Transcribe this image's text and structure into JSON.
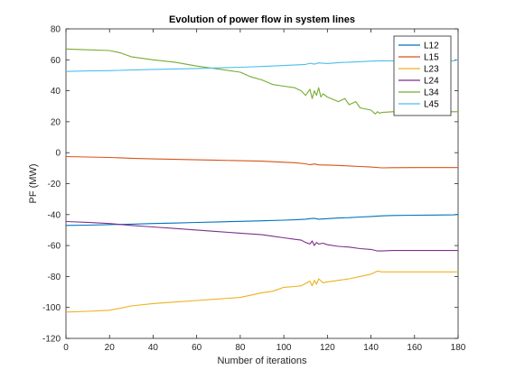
{
  "chart_data": {
    "type": "line",
    "title": "Evolution of power flow in system lines",
    "xlabel": "Number of iterations",
    "ylabel": "PF (MW)",
    "xlim": [
      0,
      180
    ],
    "ylim": [
      -120,
      80
    ],
    "xticks": [
      0,
      20,
      40,
      60,
      80,
      100,
      120,
      140,
      160,
      180
    ],
    "yticks": [
      -120,
      -100,
      -80,
      -60,
      -40,
      -20,
      0,
      20,
      40,
      60,
      80
    ],
    "grid": false,
    "legend_position": "top-right",
    "series": [
      {
        "name": "L12",
        "color": "#0072BD",
        "x": [
          0,
          10,
          20,
          30,
          40,
          50,
          60,
          70,
          80,
          90,
          100,
          105,
          110,
          112,
          114,
          116,
          120,
          125,
          130,
          135,
          140,
          145,
          150,
          160,
          170,
          178,
          180
        ],
        "y": [
          -47,
          -46.8,
          -46.5,
          -46.2,
          -45.8,
          -45.5,
          -45.1,
          -44.7,
          -44.4,
          -44,
          -43.6,
          -43.4,
          -43,
          -42.6,
          -42.4,
          -43,
          -42.6,
          -42.2,
          -42,
          -41.6,
          -41.2,
          -40.8,
          -40.6,
          -40.4,
          -40.3,
          -40.2,
          -39.8
        ]
      },
      {
        "name": "L15",
        "color": "#D95319",
        "x": [
          0,
          10,
          20,
          30,
          40,
          50,
          60,
          70,
          80,
          90,
          100,
          105,
          110,
          112,
          114,
          116,
          120,
          125,
          130,
          135,
          140,
          145,
          150,
          160,
          170,
          180
        ],
        "y": [
          -2.5,
          -2.8,
          -3.1,
          -3.6,
          -4.0,
          -4.3,
          -4.6,
          -4.9,
          -5.2,
          -5.5,
          -6.2,
          -6.5,
          -7.2,
          -7.8,
          -7.3,
          -7.9,
          -8.0,
          -8.2,
          -8.6,
          -8.9,
          -9.3,
          -9.8,
          -9.7,
          -9.6,
          -9.6,
          -9.6
        ]
      },
      {
        "name": "L23",
        "color": "#EDB120",
        "x": [
          0,
          10,
          20,
          25,
          30,
          40,
          50,
          60,
          70,
          80,
          90,
          95,
          100,
          105,
          108,
          110,
          112,
          113,
          114,
          115,
          116,
          118,
          120,
          125,
          130,
          135,
          140,
          143,
          145,
          150,
          160,
          170,
          180
        ],
        "y": [
          -103,
          -102.5,
          -101.8,
          -100.5,
          -99,
          -97.5,
          -96.5,
          -95.5,
          -94.5,
          -93.5,
          -90.5,
          -89.5,
          -87,
          -86.5,
          -86,
          -84.5,
          -83,
          -86,
          -82.5,
          -85,
          -81.5,
          -84,
          -83.5,
          -82.5,
          -81.5,
          -80,
          -78.5,
          -76.5,
          -77,
          -77,
          -77,
          -77,
          -77
        ]
      },
      {
        "name": "L24",
        "color": "#7E2F8E",
        "x": [
          0,
          10,
          20,
          30,
          40,
          50,
          60,
          70,
          80,
          90,
          95,
          100,
          105,
          108,
          110,
          112,
          113,
          114,
          115,
          116,
          118,
          120,
          125,
          130,
          135,
          140,
          143,
          145,
          150,
          160,
          170,
          180
        ],
        "y": [
          -44.5,
          -45,
          -45.8,
          -47,
          -48,
          -49,
          -50,
          -51,
          -52,
          -53,
          -54,
          -55,
          -56,
          -56.5,
          -58,
          -59,
          -57,
          -60,
          -58,
          -59,
          -58.5,
          -59.5,
          -60.5,
          -61,
          -62,
          -62.5,
          -63.5,
          -63.5,
          -63.2,
          -63.2,
          -63.2,
          -63.2
        ]
      },
      {
        "name": "L34",
        "color": "#77AC30",
        "x": [
          0,
          10,
          20,
          25,
          30,
          40,
          50,
          60,
          70,
          80,
          85,
          90,
          95,
          100,
          105,
          108,
          110,
          112,
          113,
          114,
          115,
          116,
          117,
          118,
          120,
          125,
          128,
          130,
          133,
          135,
          140,
          142,
          143,
          144,
          145,
          150,
          160,
          170,
          180
        ],
        "y": [
          67,
          66.5,
          66,
          64.5,
          62,
          60,
          58.5,
          56,
          54,
          52,
          49,
          47,
          44,
          43,
          42,
          40,
          37,
          41,
          35,
          40,
          37,
          42,
          36,
          38,
          36,
          33,
          35,
          31,
          33,
          29,
          27.5,
          25,
          26.5,
          25.5,
          26,
          26.5,
          26.5,
          26.5,
          26.5
        ]
      },
      {
        "name": "L45",
        "color": "#4DBEEE",
        "x": [
          0,
          10,
          20,
          30,
          40,
          50,
          60,
          70,
          80,
          90,
          100,
          110,
          112,
          114,
          116,
          120,
          125,
          130,
          135,
          140,
          145,
          150,
          160,
          170,
          178,
          180
        ],
        "y": [
          52.5,
          52.8,
          53,
          53.4,
          53.8,
          54.1,
          54.4,
          54.8,
          55.2,
          55.7,
          56.3,
          57,
          57.8,
          57.2,
          58,
          57.6,
          58.2,
          58.5,
          58.8,
          59.2,
          59.4,
          59.3,
          59.3,
          59.4,
          59.3,
          60.2
        ]
      }
    ]
  }
}
